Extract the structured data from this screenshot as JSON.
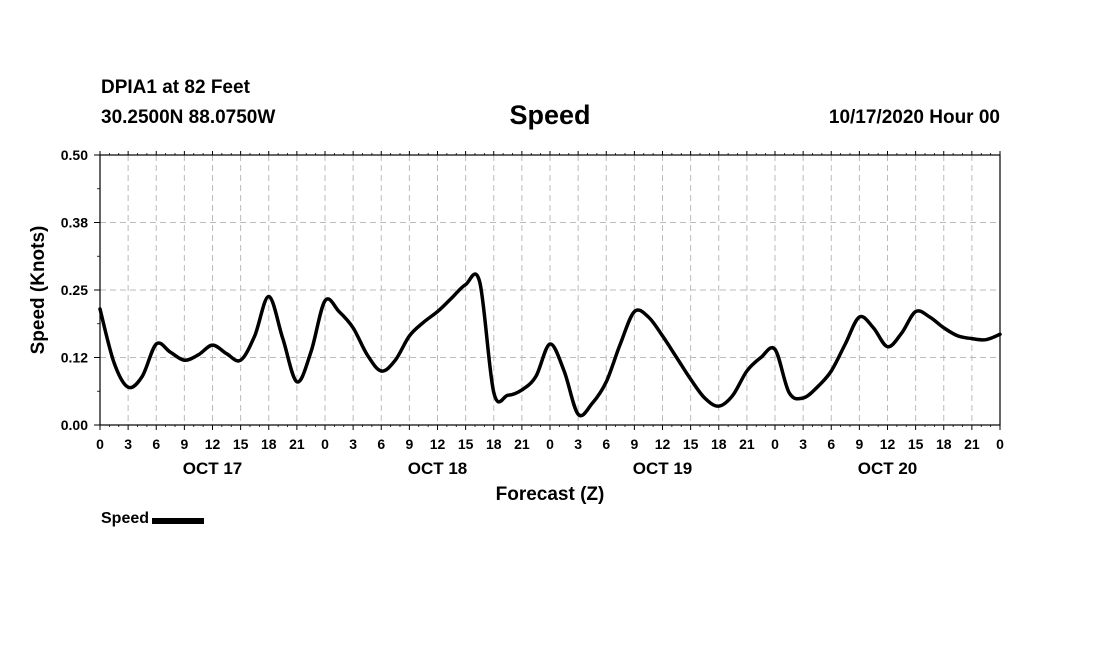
{
  "header": {
    "station": "DPIA1 at 82 Feet",
    "coordinates": "30.2500N 88.0750W",
    "title": "Speed",
    "run_time": "10/17/2020 Hour 00"
  },
  "legend": {
    "label": "Speed"
  },
  "chart_data": {
    "type": "line",
    "title": "Speed",
    "ylabel": "Speed (Knots)",
    "xlabel": "Forecast (Z)",
    "ylim": [
      0,
      0.5
    ],
    "yticks": [
      "0.00",
      "0.12",
      "0.25",
      "0.38",
      "0.50"
    ],
    "ytick_values": [
      0,
      0.125,
      0.25,
      0.375,
      0.5
    ],
    "xlim": [
      0,
      96
    ],
    "xtick_labels": [
      "0",
      "3",
      "6",
      "9",
      "12",
      "15",
      "18",
      "21",
      "0",
      "3",
      "6",
      "9",
      "12",
      "15",
      "18",
      "21",
      "0",
      "3",
      "6",
      "9",
      "12",
      "15",
      "18",
      "21",
      "0",
      "3",
      "6",
      "9",
      "12",
      "15",
      "18",
      "21",
      "0"
    ],
    "day_labels": [
      {
        "label": "OCT 17",
        "hour": 12
      },
      {
        "label": "OCT 18",
        "hour": 36
      },
      {
        "label": "OCT 19",
        "hour": 60
      },
      {
        "label": "OCT 20",
        "hour": 84
      }
    ],
    "grid": true,
    "legend_position": "bottom-left",
    "series": [
      {
        "name": "Speed",
        "color": "#000000",
        "x": [
          0,
          1.5,
          3,
          4.5,
          6,
          7.5,
          9,
          10.5,
          12,
          13.5,
          15,
          16.5,
          18,
          19.5,
          21,
          22.5,
          24,
          25.5,
          27,
          28.5,
          30,
          31.5,
          33,
          34.5,
          36,
          37.5,
          39,
          40.5,
          42,
          43.5,
          45,
          46.5,
          48,
          49.5,
          51,
          52.5,
          54,
          55.5,
          57,
          58.5,
          60,
          61.5,
          63,
          64.5,
          66,
          67.5,
          69,
          70.5,
          72,
          73.5,
          75,
          76.5,
          78,
          79.5,
          81,
          82.5,
          84,
          85.5,
          87,
          88.5,
          90,
          91.5,
          93,
          94.5,
          96
        ],
        "values": [
          0.215,
          0.115,
          0.07,
          0.09,
          0.15,
          0.135,
          0.12,
          0.13,
          0.148,
          0.132,
          0.12,
          0.165,
          0.238,
          0.16,
          0.08,
          0.135,
          0.23,
          0.21,
          0.18,
          0.13,
          0.1,
          0.12,
          0.165,
          0.19,
          0.21,
          0.235,
          0.26,
          0.265,
          0.06,
          0.055,
          0.065,
          0.09,
          0.15,
          0.1,
          0.02,
          0.04,
          0.08,
          0.15,
          0.21,
          0.2,
          0.165,
          0.125,
          0.085,
          0.05,
          0.035,
          0.055,
          0.1,
          0.125,
          0.14,
          0.06,
          0.05,
          0.07,
          0.1,
          0.15,
          0.2,
          0.18,
          0.145,
          0.17,
          0.21,
          0.2,
          0.18,
          0.165,
          0.16,
          0.158,
          0.168
        ]
      }
    ]
  }
}
